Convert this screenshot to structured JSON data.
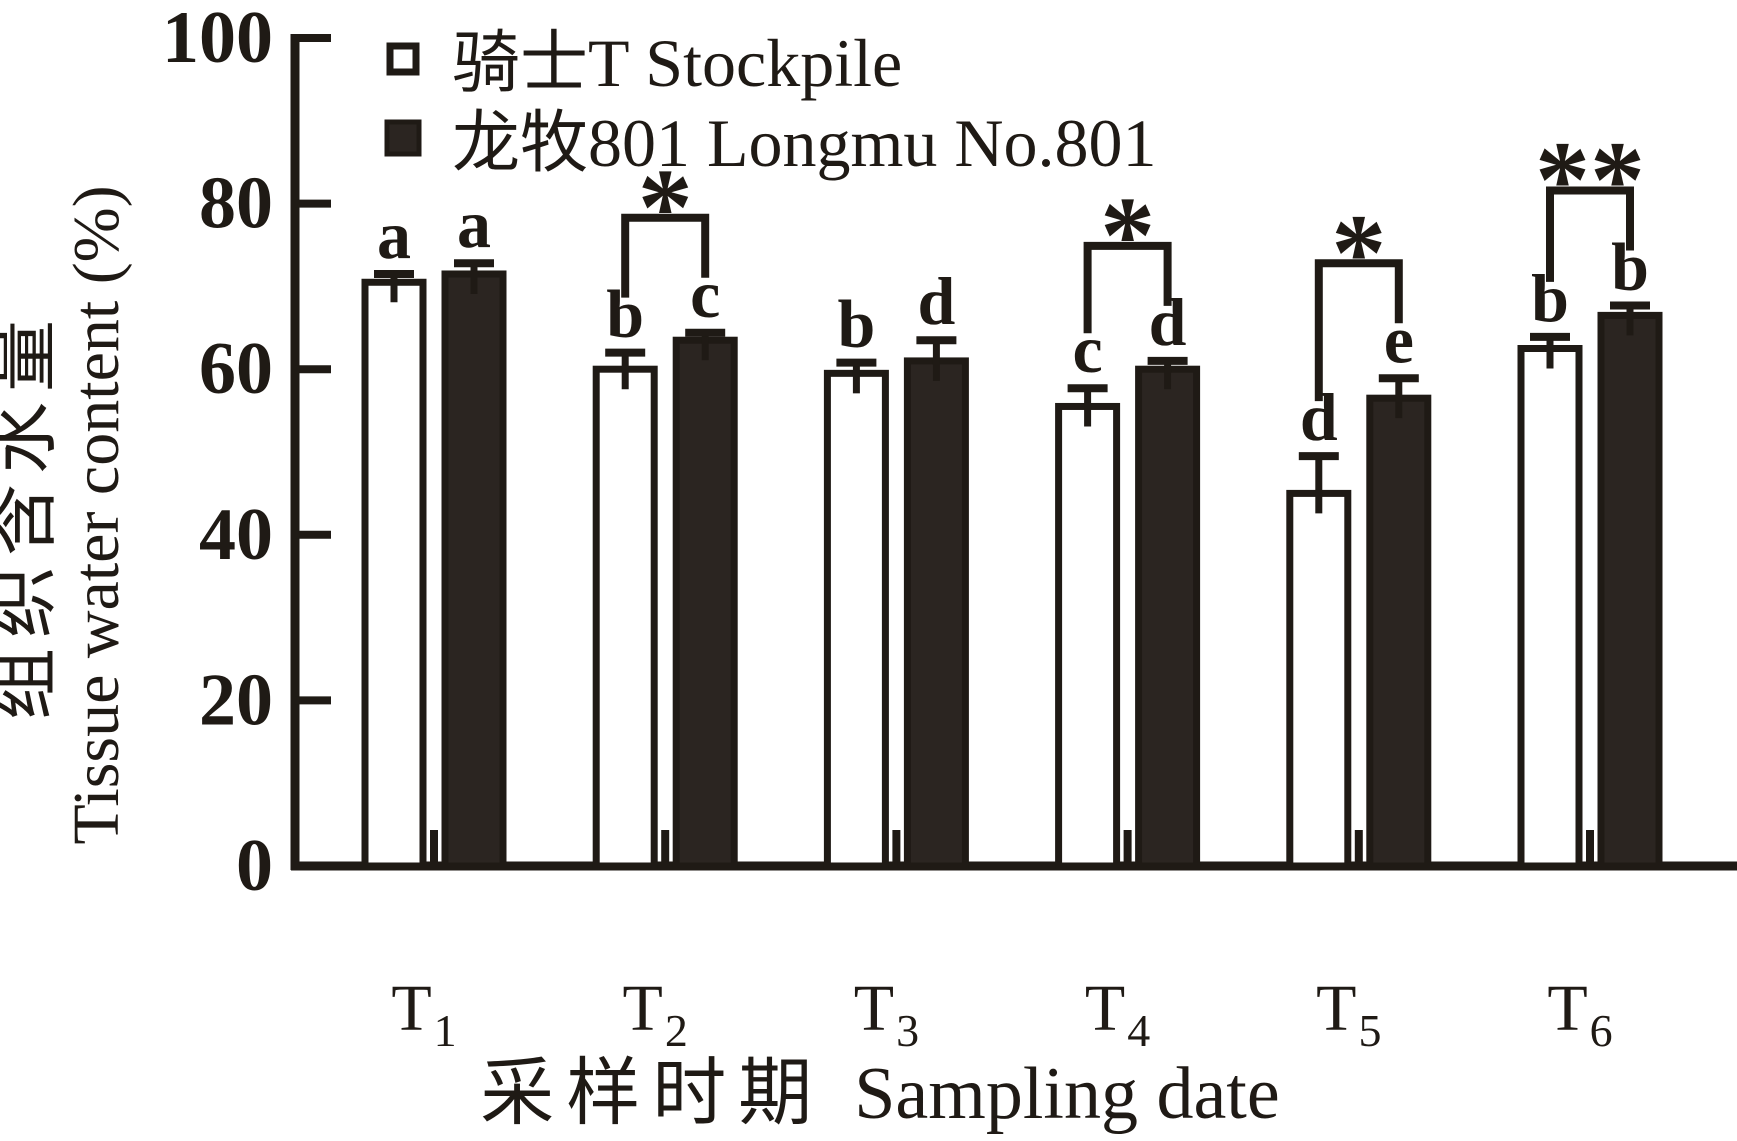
{
  "figure": {
    "background": "#ffffff",
    "ink_color": "#1f1a15",
    "bar_fill_dark": "#2b2521",
    "bar_fill_white": "#ffffff"
  },
  "chart_data": {
    "type": "bar",
    "title": "",
    "xlabel_cn": "采样时期",
    "xlabel_en": "Sampling date",
    "ylabel_cn": "组织含水量",
    "ylabel_en": "Tissue water content (%)",
    "ylim": [
      0,
      100
    ],
    "yticks": [
      "100",
      "80",
      "60",
      "40",
      "20",
      "0"
    ],
    "ytick_values": [
      100,
      80,
      60,
      40,
      20,
      0
    ],
    "grid": false,
    "legend_position": "top-left-inside",
    "categories": [
      "T1",
      "T2",
      "T3",
      "T4",
      "T5",
      "T6"
    ],
    "category_base": "T",
    "category_subscripts": [
      "1",
      "2",
      "3",
      "4",
      "5",
      "6"
    ],
    "series": [
      {
        "name": "骑士T Stockpile",
        "swatch": "white",
        "values": [
          70.5,
          60.0,
          59.5,
          55.5,
          45.0,
          62.5
        ],
        "errors": [
          1.0,
          2.0,
          1.3,
          2.2,
          4.5,
          1.4
        ],
        "letters": [
          "a",
          "b",
          "b",
          "c",
          "d",
          "b"
        ]
      },
      {
        "name": "龙牧801 Longmu No.801",
        "swatch": "dark",
        "values": [
          71.5,
          63.5,
          61.0,
          60.0,
          56.5,
          66.5
        ],
        "errors": [
          1.3,
          0.9,
          2.5,
          1.0,
          2.4,
          1.2
        ],
        "letters": [
          "a",
          "c",
          "d",
          "d",
          "e",
          "b"
        ]
      }
    ],
    "significance": [
      "",
      "*",
      "",
      "*",
      "*",
      "**"
    ]
  }
}
